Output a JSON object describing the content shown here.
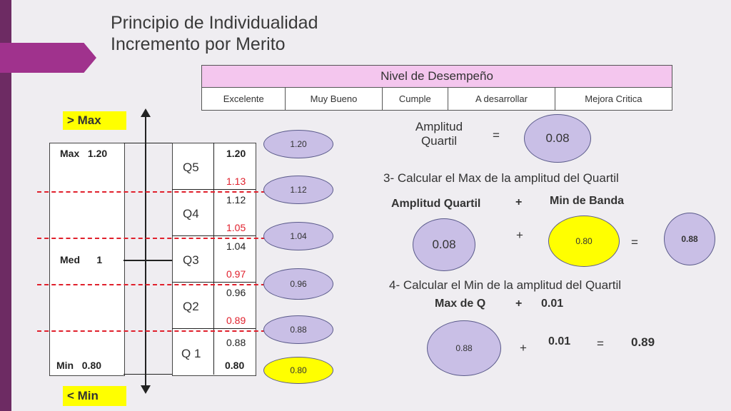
{
  "title": {
    "line1": "Principio de Individualidad",
    "line2": "Incremento por Merito"
  },
  "nivel_table": {
    "header": "Nivel de Desempeño",
    "columns": [
      "Excelente",
      "Muy Bueno",
      "Cumple",
      "A desarrollar",
      "Mejora Critica"
    ]
  },
  "band": {
    "gt_max": "> Max",
    "lt_min": "< Min",
    "max_label": "Max   1.20",
    "med_label": "Med      1",
    "min_label": "Min   0.80"
  },
  "quartiles": [
    {
      "name": "Q5",
      "max": "1.20",
      "min": "1.13"
    },
    {
      "name": "Q4",
      "max": "1.12",
      "min": "1.05"
    },
    {
      "name": "Q3",
      "max": "1.04",
      "min": "0.97"
    },
    {
      "name": "Q2",
      "max": "0.96",
      "min": "0.89"
    },
    {
      "name": "Q 1",
      "max": "0.88",
      "min": "0.80"
    }
  ],
  "ovals": [
    "1.20",
    "1.12",
    "1.04",
    "0.96",
    "0.88",
    "0.80"
  ],
  "amplitud": {
    "label_line1": "Amplitud",
    "label_line2": "Quartil",
    "equals": "=",
    "value": "0.08"
  },
  "step3": {
    "title": "3- Calcular el Max de la amplitud del Quartil",
    "left_label": "Amplitud Quartil",
    "plus_label": "+",
    "right_label": "Min de Banda",
    "oval_a": "0.08",
    "plus": "+",
    "oval_b": "0.80",
    "equals": "=",
    "result": "0.88"
  },
  "step4": {
    "title": "4- Calcular el Min de la amplitud del Quartil",
    "left_label": "Max de Q",
    "plus_label": "+",
    "right_label": "0.01",
    "oval_a": "0.88",
    "plus": "+",
    "addend": "0.01",
    "equals": "=",
    "result": "0.89"
  }
}
